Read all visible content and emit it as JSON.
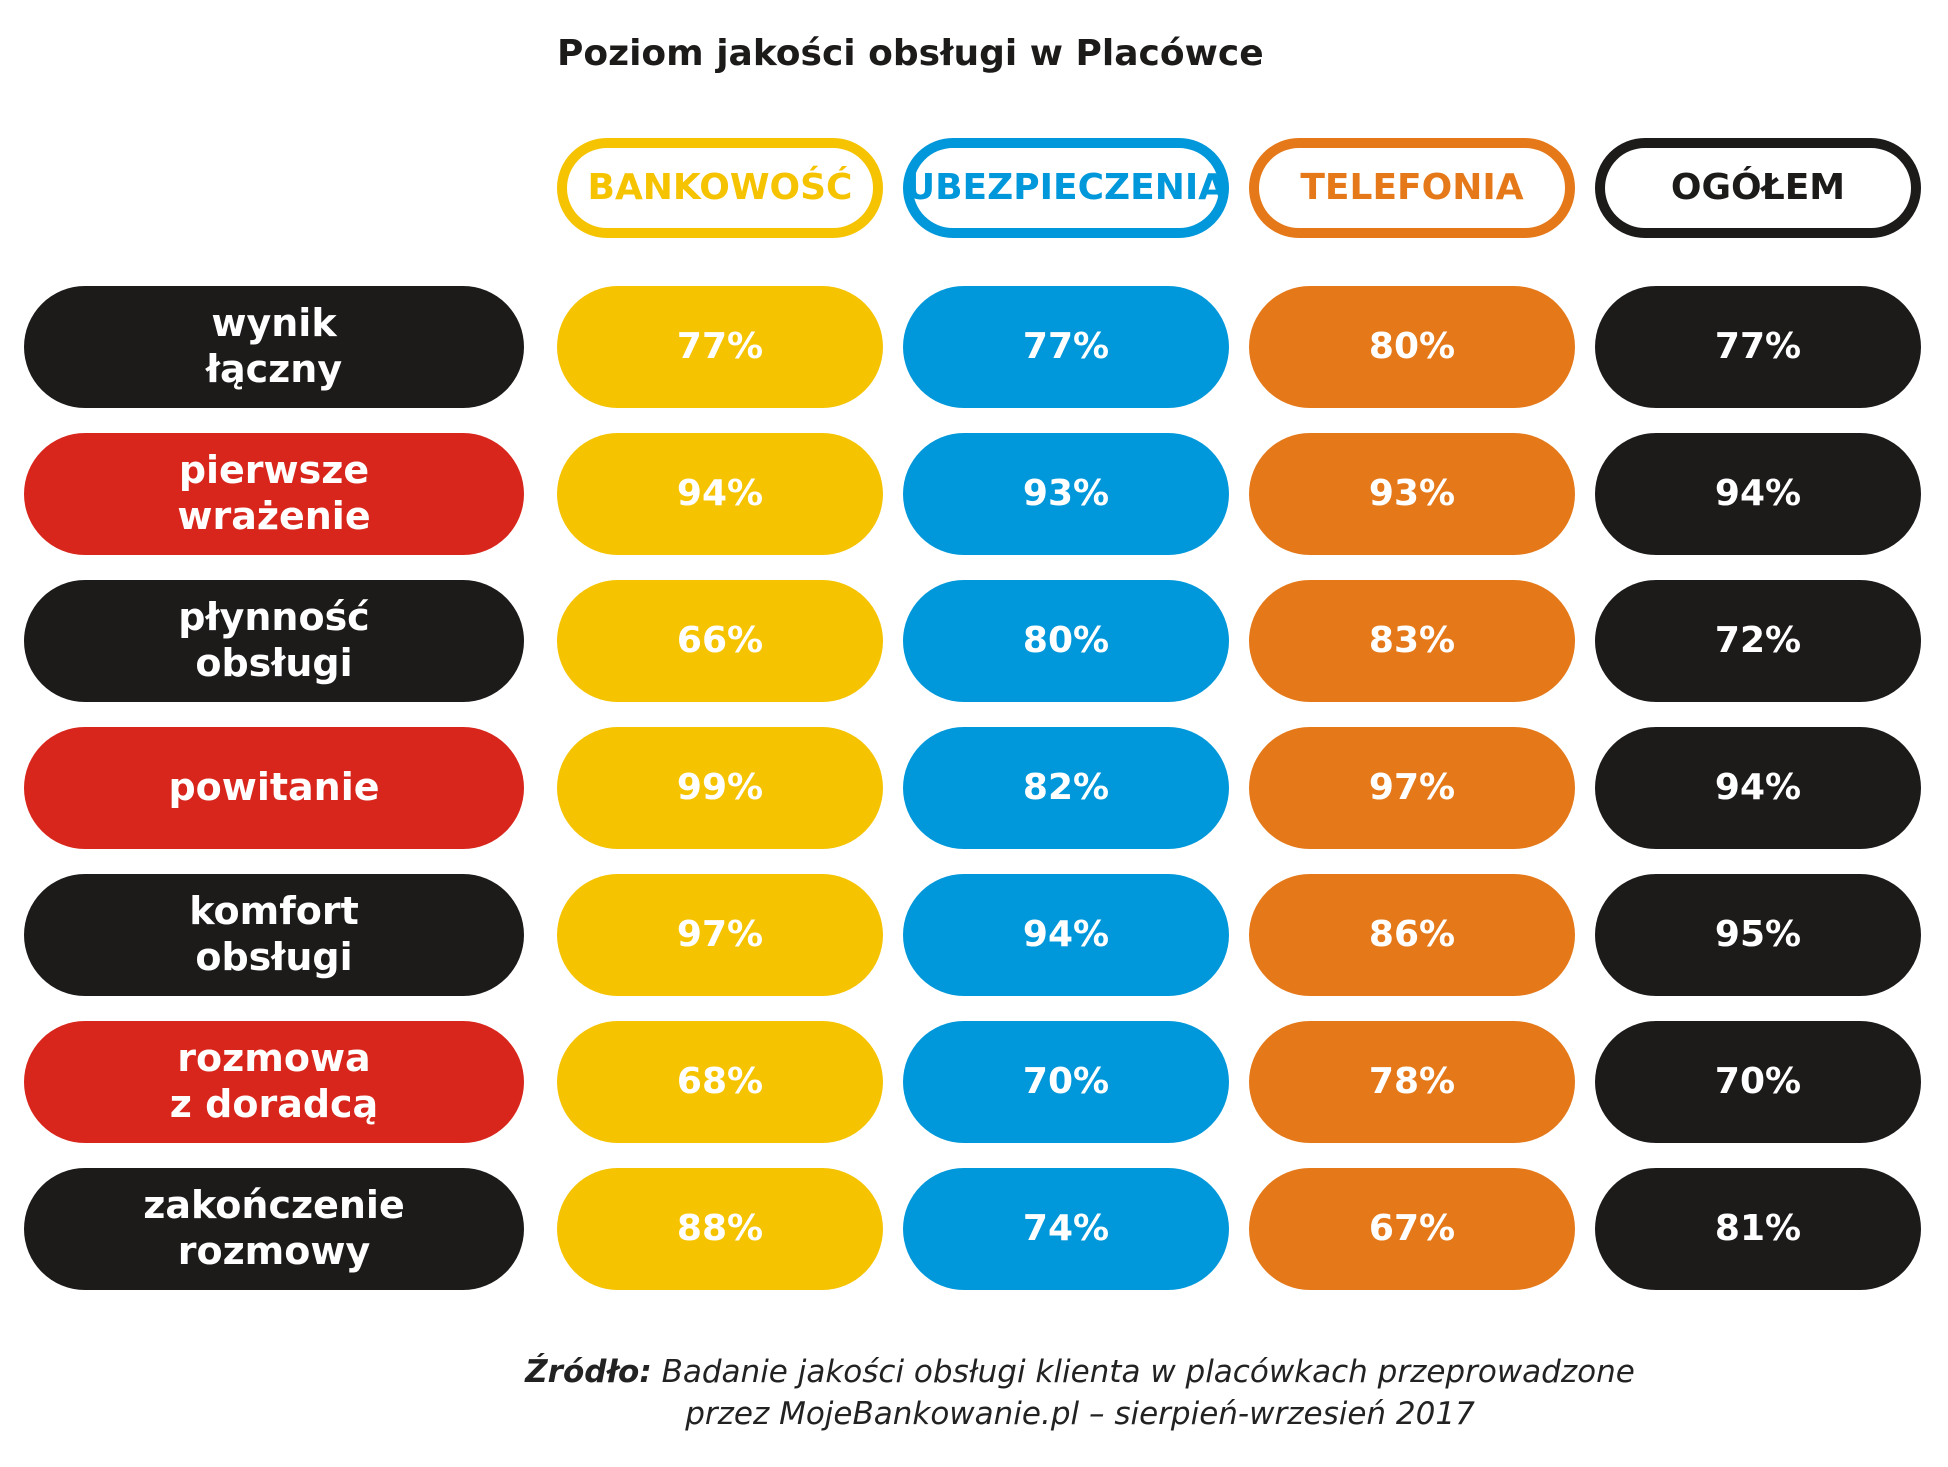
{
  "chart_data": {
    "type": "table",
    "title": "Poziom jakości obsługi w Placówce",
    "columns": [
      {
        "label": "BANKOWOŚĆ",
        "color": "#F6C300"
      },
      {
        "label": "UBEZPIECZENIA",
        "color": "#0098DA"
      },
      {
        "label": "TELEFONIA",
        "color": "#E5791A"
      },
      {
        "label": "OGÓŁEM",
        "color": "#1D1A1A"
      }
    ],
    "rows": [
      {
        "label": "wynik\nłączny",
        "label_color": "#1D1A1A",
        "values": [
          "77%",
          "77%",
          "80%",
          "77%"
        ]
      },
      {
        "label": "pierwsze\nwrażenie",
        "label_color": "#D9261C",
        "values": [
          "94%",
          "93%",
          "93%",
          "94%"
        ]
      },
      {
        "label": "płynność\nobsługi",
        "label_color": "#1D1A1A",
        "values": [
          "66%",
          "80%",
          "83%",
          "72%"
        ]
      },
      {
        "label": "powitanie",
        "label_color": "#D9261C",
        "values": [
          "99%",
          "82%",
          "97%",
          "94%"
        ]
      },
      {
        "label": "komfort\nobsługi",
        "label_color": "#1D1A1A",
        "values": [
          "97%",
          "94%",
          "86%",
          "95%"
        ]
      },
      {
        "label": "rozmowa\nz doradcą",
        "label_color": "#D9261C",
        "values": [
          "68%",
          "70%",
          "78%",
          "70%"
        ]
      },
      {
        "label": "zakończenie\nrozmowy",
        "label_color": "#1D1A1A",
        "values": [
          "88%",
          "74%",
          "67%",
          "81%"
        ]
      }
    ]
  },
  "source": {
    "label": "Źródło:",
    "line1": "Badanie jakości obsługi klienta w placówkach przeprowadzone",
    "line2": "przez MojeBankowanie.pl – sierpień-wrzesień 2017"
  }
}
